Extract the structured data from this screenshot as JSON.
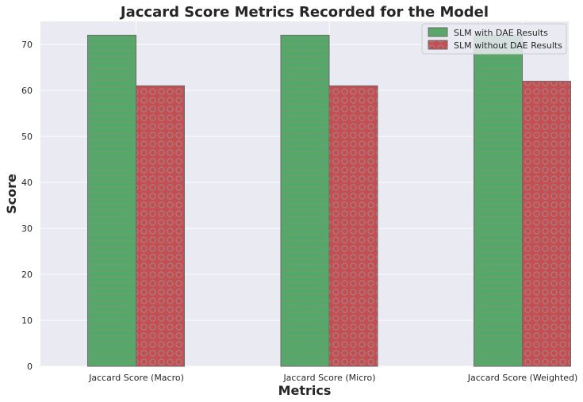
{
  "chart_data": {
    "type": "bar",
    "title": "Jaccard Score Metrics Recorded for the Model",
    "xlabel": "Metrics",
    "ylabel": "Score",
    "categories": [
      "Jaccard Score (Macro)",
      "Jaccard Score (Micro)",
      "Jaccard Score (Weighted)"
    ],
    "series": [
      {
        "name": "SLM with DAE Results",
        "values": [
          72,
          72,
          72
        ],
        "color": "#55a868",
        "hatch": "horizontal-lines"
      },
      {
        "name": "SLM without DAE Results",
        "values": [
          61,
          61,
          62
        ],
        "color": "#c44e52",
        "hatch": "circles"
      }
    ],
    "ylim": [
      0,
      75
    ],
    "yticks": [
      0,
      10,
      20,
      30,
      40,
      50,
      60,
      70
    ],
    "grid": true,
    "legend_position": "top-right",
    "background_color": "#eaeaf2",
    "grid_color": "#ffffff",
    "bar_edge_color": "#6b6b6b"
  }
}
